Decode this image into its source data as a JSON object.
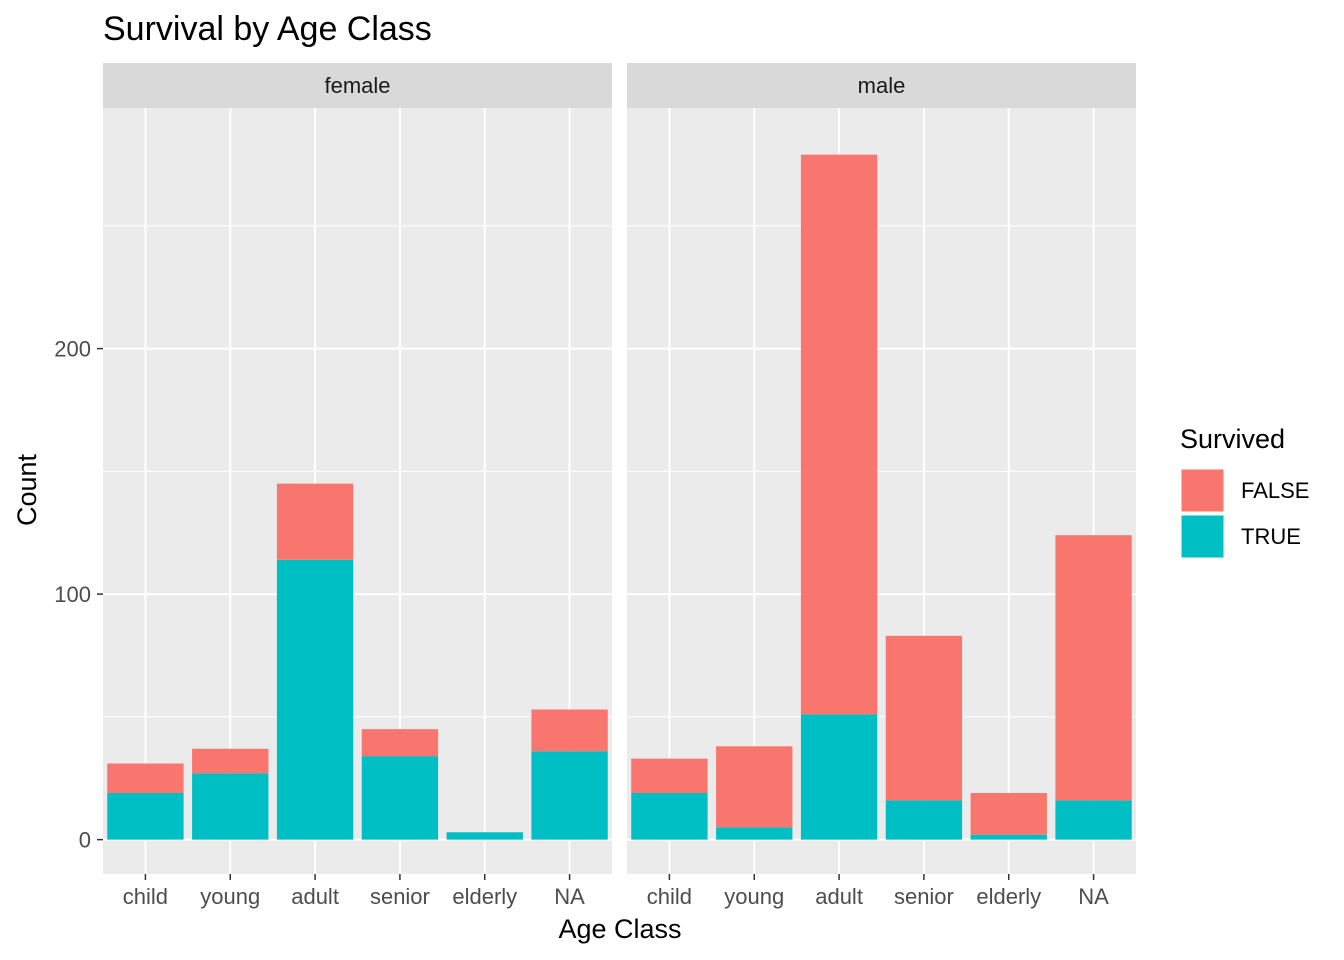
{
  "chart_data": {
    "type": "bar",
    "stacked": true,
    "title": "Survival by Age Class",
    "xlabel": "Age Class",
    "ylabel": "Count",
    "categories": [
      "child",
      "young",
      "adult",
      "senior",
      "elderly",
      "NA"
    ],
    "y_ticks": [
      0,
      100,
      200
    ],
    "y_tick_labels": [
      "0",
      "100",
      "200"
    ],
    "ylim": [
      -14,
      298
    ],
    "grid": true,
    "legend": {
      "title": "Survived",
      "position": "right",
      "entries": [
        {
          "label": "FALSE",
          "color": "#F8766D"
        },
        {
          "label": "TRUE",
          "color": "#00BFC4"
        }
      ]
    },
    "panels": [
      {
        "strip": "female",
        "series": [
          {
            "name": "TRUE",
            "values": [
              19,
              27,
              114,
              34,
              3,
              36
            ]
          },
          {
            "name": "FALSE",
            "values": [
              12,
              10,
              31,
              11,
              0,
              17
            ]
          }
        ]
      },
      {
        "strip": "male",
        "series": [
          {
            "name": "TRUE",
            "values": [
              19,
              5,
              51,
              16,
              2,
              16
            ]
          },
          {
            "name": "FALSE",
            "values": [
              14,
              33,
              228,
              67,
              17,
              108
            ]
          }
        ]
      }
    ],
    "colors": {
      "FALSE": "#F8766D",
      "TRUE": "#00BFC4",
      "panel_bg": "#EBEBEB",
      "strip_bg": "#D9D9D9",
      "grid": "#FFFFFF"
    }
  }
}
